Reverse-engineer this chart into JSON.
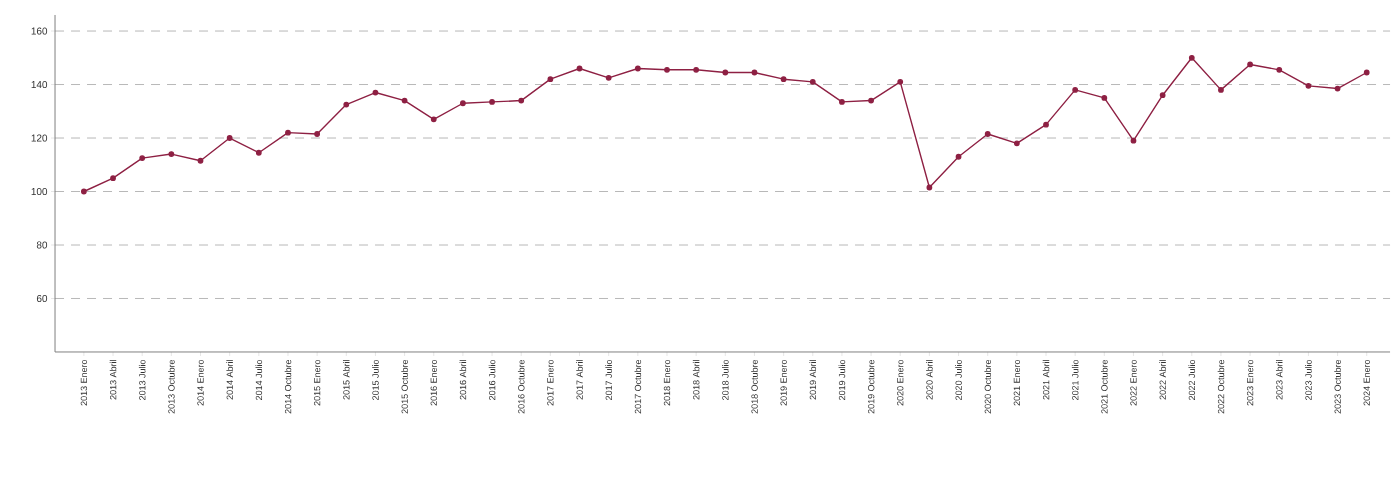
{
  "chart_data": {
    "type": "line",
    "categories": [
      "2013 Enero",
      "2013 Abril",
      "2013 Julio",
      "2013 Octubre",
      "2014 Enero",
      "2014 Abril",
      "2014 Julio",
      "2014 Octubre",
      "2015 Enero",
      "2015 Abril",
      "2015 Julio",
      "2015 Octubre",
      "2016 Enero",
      "2016 Abril",
      "2016 Julio",
      "2016 Octubre",
      "2017 Enero",
      "2017 Abril",
      "2017 Julio",
      "2017 Octubre",
      "2018 Enero",
      "2018 Abril",
      "2018 Julio",
      "2018 Octubre",
      "2019 Enero",
      "2019 Abril",
      "2019 Julio",
      "2019 Octubre",
      "2020 Enero",
      "2020 Abril",
      "2020 Julio",
      "2020 Octubre",
      "2021 Enero",
      "2021 Abril",
      "2021 Julio",
      "2021 Octubre",
      "2022 Enero",
      "2022 Abril",
      "2022 Julio",
      "2022 Octubre",
      "2023 Enero",
      "2023 Abril",
      "2023 Julio",
      "2023 Octubre",
      "2024 Enero"
    ],
    "series": [
      {
        "color": "#8e2043",
        "values": [
          100,
          105,
          112.5,
          114,
          111.5,
          120,
          114.5,
          122,
          121.5,
          132.5,
          137,
          134,
          127,
          133,
          133.5,
          134,
          142,
          146,
          142.5,
          146,
          145.5,
          145.5,
          144.5,
          144.5,
          142,
          141,
          133.5,
          134,
          141,
          101.5,
          113,
          121.5,
          118,
          125,
          138,
          135,
          119,
          136,
          150,
          138,
          147.5,
          145.5,
          139.5,
          138.5,
          144.5
        ]
      }
    ],
    "ylim": [
      40,
      166
    ],
    "yticks": [
      60,
      80,
      100,
      120,
      140,
      160
    ],
    "grid": "y",
    "marker": "circle",
    "line_style": "solid"
  }
}
